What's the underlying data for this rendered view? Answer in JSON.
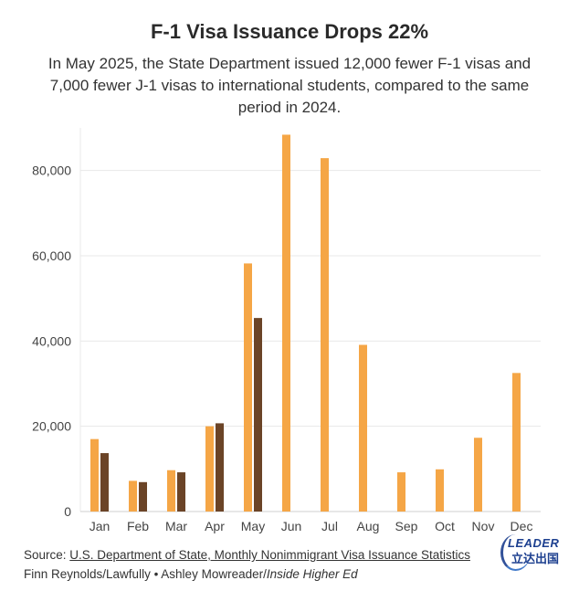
{
  "header": {
    "title": "F-1 Visa Issuance Drops 22%",
    "subtitle": "In May 2025, the State Department issued 12,000 fewer F-1 visas and 7,000 fewer J-1 visas to international students, compared to the same period in 2024."
  },
  "footer": {
    "source_prefix": "Source: ",
    "source_link": "U.S. Department of State, Monthly Nonimmigrant Visa Issuance Statistics",
    "credit_text": "Finn Reynolds/Lawfully • Ashley Mowreader/",
    "credit_pub": "Inside Higher Ed"
  },
  "watermark": {
    "text": "LEADER",
    "cn_text": "立达出国"
  },
  "colors": {
    "series_2024": "#f5a646",
    "series_2025": "#6b4427",
    "grid": "#e8e8e8"
  },
  "chart_data": {
    "type": "bar",
    "categories": [
      "Jan",
      "Feb",
      "Mar",
      "Apr",
      "May",
      "Jun",
      "Jul",
      "Aug",
      "Sep",
      "Oct",
      "Nov",
      "Dec"
    ],
    "series": [
      {
        "values": [
          17000,
          7200,
          9700,
          20000,
          58200,
          88400,
          82900,
          39100,
          9200,
          9900,
          17300,
          32500
        ]
      },
      {
        "values": [
          13700,
          6900,
          9200,
          20700,
          45400,
          null,
          null,
          null,
          null,
          null,
          null,
          null
        ]
      }
    ],
    "ylim": [
      0,
      90000
    ],
    "yticks": [
      0,
      20000,
      40000,
      60000,
      80000
    ],
    "ytick_labels": [
      "0",
      "20,000",
      "40,000",
      "60,000",
      "80,000"
    ],
    "grid": true
  }
}
